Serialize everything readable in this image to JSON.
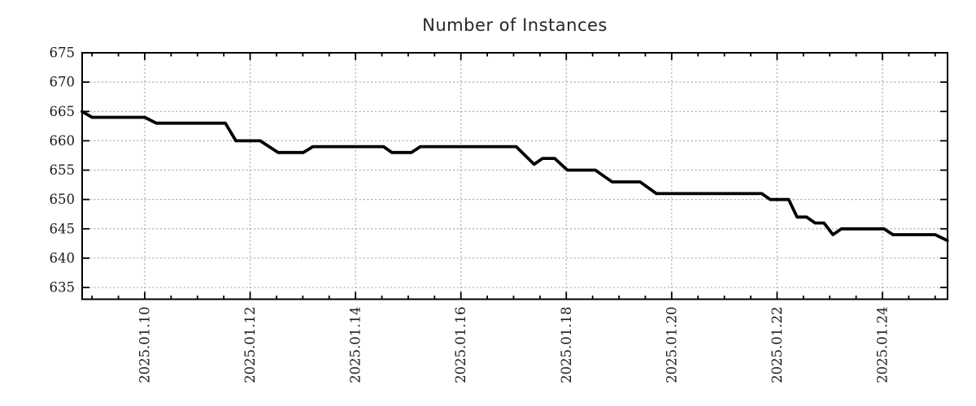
{
  "chart_data": {
    "type": "line",
    "title": "Number of Instances",
    "xlabel": "",
    "ylabel": "",
    "x_unit": "date (day of January 2025, fractional)",
    "points": [
      [
        8.81,
        665
      ],
      [
        9.0,
        664
      ],
      [
        10.0,
        664
      ],
      [
        10.22,
        663
      ],
      [
        11.53,
        663
      ],
      [
        11.73,
        660
      ],
      [
        12.19,
        660
      ],
      [
        12.53,
        658
      ],
      [
        13.01,
        658
      ],
      [
        13.19,
        659
      ],
      [
        14.53,
        659
      ],
      [
        14.69,
        658
      ],
      [
        15.06,
        658
      ],
      [
        15.23,
        659
      ],
      [
        17.05,
        659
      ],
      [
        17.39,
        656
      ],
      [
        17.55,
        657
      ],
      [
        17.78,
        657
      ],
      [
        18.02,
        655
      ],
      [
        18.55,
        655
      ],
      [
        18.87,
        653
      ],
      [
        19.4,
        653
      ],
      [
        19.71,
        651
      ],
      [
        21.71,
        651
      ],
      [
        21.87,
        650
      ],
      [
        22.22,
        650
      ],
      [
        22.38,
        647
      ],
      [
        22.56,
        647
      ],
      [
        22.72,
        646
      ],
      [
        22.89,
        646
      ],
      [
        23.06,
        644
      ],
      [
        23.22,
        645
      ],
      [
        24.03,
        645
      ],
      [
        24.2,
        644
      ],
      [
        25.0,
        644
      ],
      [
        25.23,
        643
      ]
    ],
    "xlim": [
      8.812,
      25.235
    ],
    "ylim": [
      633,
      675
    ],
    "xticks": {
      "values": [
        10,
        12,
        14,
        16,
        18,
        20,
        22,
        24
      ],
      "labels": [
        "2025.01.10",
        "2025.01.12",
        "2025.01.14",
        "2025.01.16",
        "2025.01.18",
        "2025.01.20",
        "2025.01.22",
        "2025.01.24"
      ],
      "minor_interval_days": 0.5
    },
    "yticks": {
      "values": [
        635,
        640,
        645,
        650,
        655,
        660,
        665,
        670,
        675
      ],
      "labels": [
        "635",
        "640",
        "645",
        "650",
        "655",
        "660",
        "665",
        "670",
        "675"
      ]
    },
    "grid": true,
    "legend": null,
    "colors": {
      "line": "#000000",
      "grid": "#a9a9a9",
      "frame": "#000000",
      "text": "#1a1a1a",
      "background": "#ffffff"
    }
  }
}
